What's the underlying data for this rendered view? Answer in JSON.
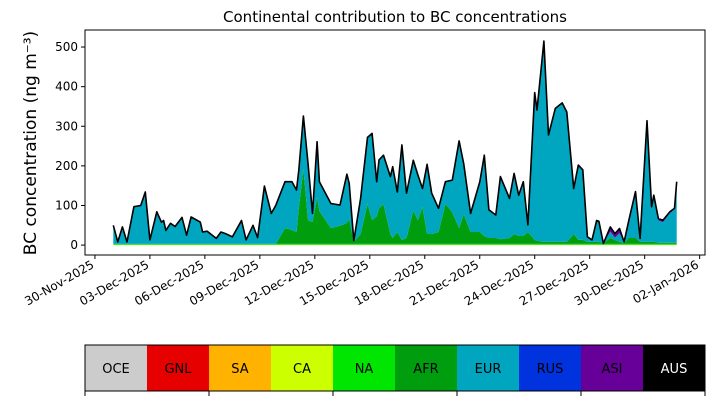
{
  "chart_data": {
    "type": "area",
    "stacked": true,
    "title": "Continental contribution to BC concentrations",
    "ylabel": "BC concentration (ng m⁻³)",
    "xlabel": "",
    "ylim": [
      -25,
      543
    ],
    "xlim": [
      "2025-11-29T11:00",
      "2026-01-02T07:00"
    ],
    "yticks": [
      0,
      100,
      200,
      300,
      400,
      500
    ],
    "xticks": [
      "2025-11-30",
      "2025-12-03",
      "2025-12-06",
      "2025-12-09",
      "2025-12-12",
      "2025-12-15",
      "2025-12-18",
      "2025-12-21",
      "2025-12-24",
      "2025-12-27",
      "2025-12-30",
      "2026-01-02"
    ],
    "xtick_labels": [
      "30-Nov-2025",
      "03-Dec-2025",
      "06-Dec-2025",
      "09-Dec-2025",
      "12-Dec-2025",
      "15-Dec-2025",
      "18-Dec-2025",
      "21-Dec-2025",
      "24-Dec-2025",
      "27-Dec-2025",
      "30-Dec-2025",
      "02-Jan-2026"
    ],
    "grid": false,
    "x": [
      "2025-12-01T00:00",
      "2025-12-01T06:00",
      "2025-12-01T12:00",
      "2025-12-01T18:00",
      "2025-12-02T03:00",
      "2025-12-02T12:00",
      "2025-12-02T18:00",
      "2025-12-03T00:00",
      "2025-12-03T09:00",
      "2025-12-03T15:00",
      "2025-12-03T18:00",
      "2025-12-03T21:00",
      "2025-12-04T03:00",
      "2025-12-04T09:00",
      "2025-12-04T18:00",
      "2025-12-05T00:00",
      "2025-12-05T06:00",
      "2025-12-05T18:00",
      "2025-12-05T21:00",
      "2025-12-06T03:00",
      "2025-12-06T15:00",
      "2025-12-06T21:00",
      "2025-12-07T03:00",
      "2025-12-07T12:00",
      "2025-12-08T00:00",
      "2025-12-08T06:00",
      "2025-12-08T15:00",
      "2025-12-08T21:00",
      "2025-12-09T06:00",
      "2025-12-09T15:00",
      "2025-12-09T21:00",
      "2025-12-10T09:00",
      "2025-12-10T18:00",
      "2025-12-11T00:00",
      "2025-12-11T03:00",
      "2025-12-11T09:00",
      "2025-12-11T15:00",
      "2025-12-11T21:00",
      "2025-12-12T03:00",
      "2025-12-12T06:00",
      "2025-12-12T21:00",
      "2025-12-13T09:00",
      "2025-12-13T18:00",
      "2025-12-13T21:00",
      "2025-12-14T03:00",
      "2025-12-14T12:00",
      "2025-12-14T21:00",
      "2025-12-15T03:00",
      "2025-12-15T09:00",
      "2025-12-15T12:00",
      "2025-12-15T18:00",
      "2025-12-16T03:00",
      "2025-12-16T06:00",
      "2025-12-16T12:00",
      "2025-12-16T18:00",
      "2025-12-17T00:00",
      "2025-12-17T09:00",
      "2025-12-17T15:00",
      "2025-12-17T21:00",
      "2025-12-18T03:00",
      "2025-12-18T09:00",
      "2025-12-18T18:00",
      "2025-12-19T03:00",
      "2025-12-19T12:00",
      "2025-12-19T21:00",
      "2025-12-20T03:00",
      "2025-12-20T12:00",
      "2025-12-21T00:00",
      "2025-12-21T06:00",
      "2025-12-21T12:00",
      "2025-12-21T21:00",
      "2025-12-22T03:00",
      "2025-12-22T15:00",
      "2025-12-22T21:00",
      "2025-12-23T03:00",
      "2025-12-23T09:00",
      "2025-12-23T15:00",
      "2025-12-24T00:00",
      "2025-12-24T03:00",
      "2025-12-24T12:00",
      "2025-12-24T18:00",
      "2025-12-25T03:00",
      "2025-12-25T12:00",
      "2025-12-25T18:00",
      "2025-12-26T03:00",
      "2025-12-26T09:00",
      "2025-12-26T15:00",
      "2025-12-26T21:00",
      "2025-12-27T03:00",
      "2025-12-27T09:00",
      "2025-12-27T12:00",
      "2025-12-27T18:00",
      "2025-12-28T03:00",
      "2025-12-28T09:00",
      "2025-12-28T15:00",
      "2025-12-28T21:00",
      "2025-12-29T03:00",
      "2025-12-29T12:00",
      "2025-12-29T18:00",
      "2025-12-30T03:00",
      "2025-12-30T09:00",
      "2025-12-30T12:00",
      "2025-12-30T18:00",
      "2025-12-31T00:00",
      "2025-12-31T09:00",
      "2025-12-31T15:00",
      "2025-12-31T18:00"
    ],
    "total": [
      50,
      8,
      46,
      8,
      97,
      100,
      134,
      13,
      84,
      58,
      62,
      37,
      55,
      47,
      70,
      25,
      71,
      58,
      33,
      35,
      17,
      33,
      29,
      21,
      62,
      13,
      50,
      19,
      149,
      80,
      101,
      160,
      160,
      139,
      189,
      326,
      207,
      80,
      261,
      160,
      105,
      101,
      179,
      156,
      11,
      118,
      272,
      282,
      160,
      215,
      227,
      173,
      198,
      134,
      253,
      131,
      214,
      177,
      143,
      204,
      131,
      93,
      160,
      164,
      263,
      206,
      80,
      160,
      227,
      89,
      76,
      173,
      118,
      181,
      126,
      160,
      51,
      385,
      341,
      515,
      278,
      345,
      359,
      336,
      143,
      202,
      190,
      21,
      13,
      62,
      60,
      4,
      46,
      29,
      42,
      8,
      60,
      135,
      17,
      314,
      97,
      126,
      67,
      63,
      84,
      93,
      160
    ],
    "series": [
      {
        "name": "CA",
        "constant": 1
      },
      {
        "name": "NA",
        "constant": 2
      },
      {
        "name": "AFR",
        "values": [
          0,
          0,
          0,
          0,
          0,
          0,
          0,
          0,
          0,
          0,
          0,
          0,
          0,
          0,
          0,
          0,
          0,
          0,
          0,
          0,
          0,
          0,
          0,
          0,
          0,
          0,
          0,
          0,
          0,
          0,
          0,
          40,
          35,
          30,
          90,
          189,
          60,
          55,
          118,
          83,
          40,
          46,
          53,
          62,
          5,
          25,
          101,
          60,
          70,
          90,
          100,
          25,
          15,
          30,
          10,
          15,
          84,
          60,
          93,
          25,
          25,
          30,
          101,
          80,
          40,
          75,
          30,
          30,
          20,
          15,
          15,
          12,
          15,
          25,
          20,
          20,
          30,
          10,
          8,
          5,
          5,
          5,
          5,
          5,
          25,
          10,
          10,
          5,
          5,
          5,
          5,
          2,
          15,
          10,
          5,
          2,
          15,
          15,
          5,
          5,
          5,
          5,
          3,
          3,
          3,
          3,
          3
        ]
      },
      {
        "name": "EUR",
        "remainder_of_total": true
      },
      {
        "name": "ASI",
        "values": [
          0,
          0,
          0,
          0,
          0,
          0,
          0,
          0,
          0,
          0,
          0,
          0,
          0,
          0,
          0,
          0,
          0,
          0,
          0,
          0,
          0,
          0,
          0,
          0,
          0,
          0,
          0,
          0,
          0,
          0,
          0,
          0,
          0,
          0,
          0,
          0,
          0,
          0,
          0,
          0,
          0,
          0,
          0,
          0,
          0,
          0,
          0,
          0,
          0,
          0,
          0,
          0,
          0,
          0,
          0,
          0,
          0,
          0,
          0,
          0,
          0,
          0,
          0,
          0,
          0,
          0,
          0,
          0,
          0,
          0,
          0,
          0,
          0,
          0,
          0,
          0,
          0,
          0,
          0,
          0,
          0,
          0,
          0,
          0,
          0,
          0,
          0,
          0,
          0,
          0,
          0,
          0,
          12,
          10,
          12,
          0,
          0,
          0,
          0,
          0,
          3,
          3,
          5,
          5,
          3,
          3,
          3
        ]
      }
    ],
    "legend": {
      "type": "colorbar",
      "placement": "bottom",
      "labels": [
        "OCE",
        "GNL",
        "SA",
        "CA",
        "NA",
        "AFR",
        "EUR",
        "RUS",
        "ASI",
        "AUS"
      ],
      "colors": [
        "#cccccc",
        "#e60000",
        "#ffb300",
        "#ccff00",
        "#00e600",
        "#009e0f",
        "#00a6bf",
        "#0033dd",
        "#660099",
        "#000000"
      ]
    },
    "total_line_color": "#000000"
  }
}
